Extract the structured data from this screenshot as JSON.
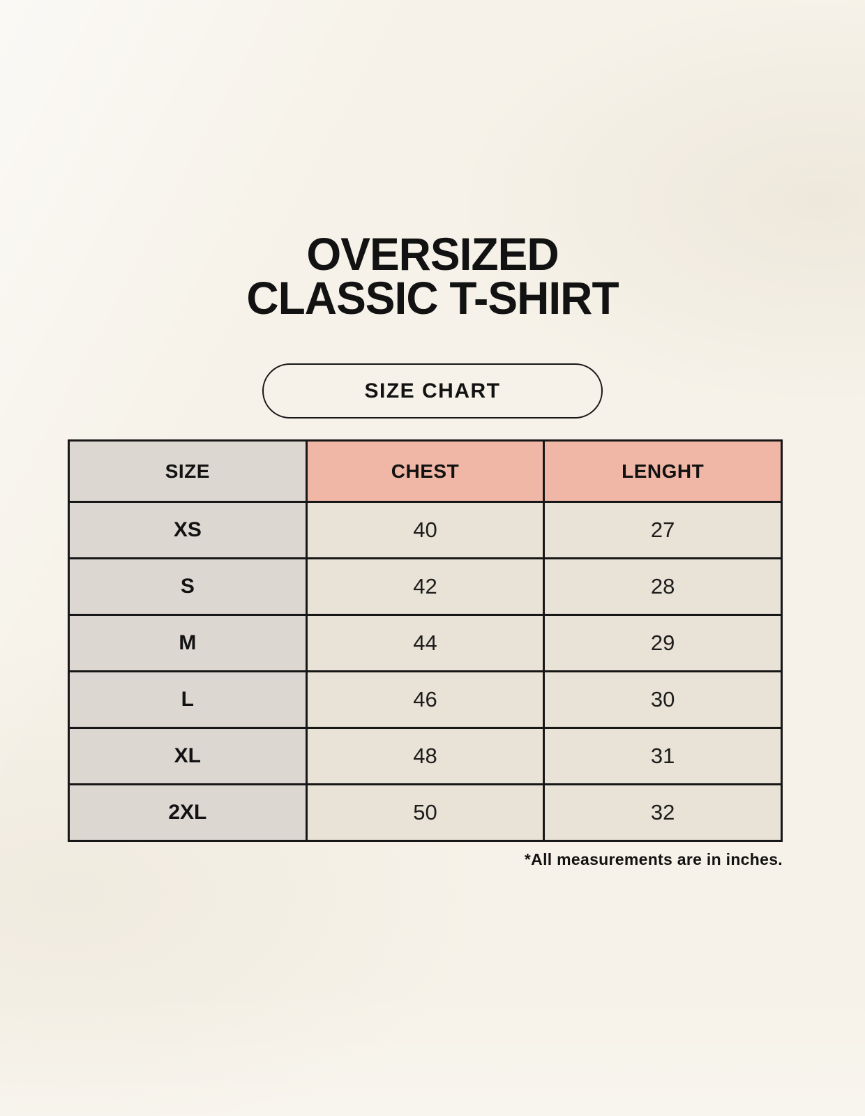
{
  "page": {
    "title_line1": "OVERSIZED",
    "title_line2": "CLASSIC T-SHIRT",
    "badge_label": "SIZE CHART"
  },
  "colors": {
    "background": "#f6f2e9",
    "size_column_bg": "#ddd7d2",
    "measure_header_bg": "#f0b7a6",
    "measure_cell_bg": "#e9e2d6",
    "border": "#171717",
    "text": "#121212"
  },
  "chart_data": {
    "type": "table",
    "title": "OVERSIZED CLASSIC T-SHIRT",
    "subtitle": "SIZE CHART",
    "columns": [
      "SIZE",
      "CHEST",
      "LENGHT"
    ],
    "units": "inches",
    "rows": [
      [
        "XS",
        40,
        27
      ],
      [
        "S",
        42,
        28
      ],
      [
        "M",
        44,
        29
      ],
      [
        "L",
        46,
        30
      ],
      [
        "XL",
        48,
        31
      ],
      [
        "2XL",
        50,
        32
      ]
    ],
    "footnote": "*All measurements are in inches."
  }
}
